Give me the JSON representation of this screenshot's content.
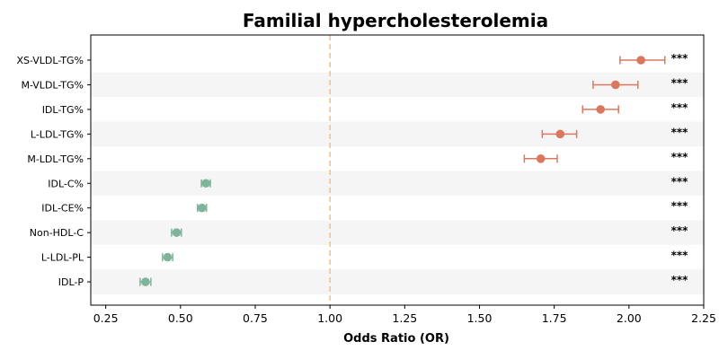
{
  "chart_data": {
    "type": "forest",
    "title": "Familial hypercholesterolemia",
    "xlabel": "Odds Ratio (OR)",
    "ylabel": "",
    "xlim": [
      0.2,
      2.25
    ],
    "xticks": [
      0.25,
      0.5,
      0.75,
      1.0,
      1.25,
      1.5,
      1.75,
      2.0,
      2.25
    ],
    "xtick_labels": [
      "0.25",
      "0.50",
      "0.75",
      "1.00",
      "1.25",
      "1.50",
      "1.75",
      "2.00",
      "2.25"
    ],
    "reference_line": 1.0,
    "colors": {
      "increased": "#d9785f",
      "decreased": "#7fb39b",
      "reference": "#f0c48c",
      "stripe": "#f5f5f5"
    },
    "rows": [
      {
        "label": "XS-VLDL-TG%",
        "or": 2.04,
        "lower": 1.97,
        "upper": 2.12,
        "sig": "***"
      },
      {
        "label": "M-VLDL-TG%",
        "or": 1.955,
        "lower": 1.88,
        "upper": 2.03,
        "sig": "***"
      },
      {
        "label": "IDL-TG%",
        "or": 1.905,
        "lower": 1.845,
        "upper": 1.965,
        "sig": "***"
      },
      {
        "label": "L-LDL-TG%",
        "or": 1.77,
        "lower": 1.71,
        "upper": 1.825,
        "sig": "***"
      },
      {
        "label": "M-LDL-TG%",
        "or": 1.705,
        "lower": 1.65,
        "upper": 1.76,
        "sig": "***"
      },
      {
        "label": "IDL-C%",
        "or": 0.585,
        "lower": 0.57,
        "upper": 0.6,
        "sig": "***"
      },
      {
        "label": "IDL-CE%",
        "or": 0.572,
        "lower": 0.557,
        "upper": 0.587,
        "sig": "***"
      },
      {
        "label": "Non-HDL-C",
        "or": 0.487,
        "lower": 0.47,
        "upper": 0.503,
        "sig": "***"
      },
      {
        "label": "L-LDL-PL",
        "or": 0.457,
        "lower": 0.44,
        "upper": 0.474,
        "sig": "***"
      },
      {
        "label": "IDL-P",
        "or": 0.383,
        "lower": 0.365,
        "upper": 0.401,
        "sig": "***"
      }
    ]
  }
}
